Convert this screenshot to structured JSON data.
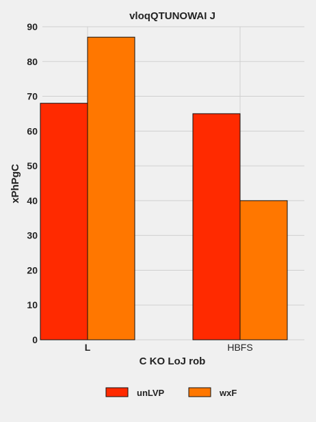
{
  "chart_data": {
    "type": "bar",
    "title": "vloqQTUNOWAI J",
    "xlabel": "C KO LoJ rob",
    "ylabel": "xPhPgC",
    "categories": [
      "L",
      "HBFS"
    ],
    "series": [
      {
        "name": "unLVP",
        "values": [
          68,
          65
        ],
        "color": "#ff2a00"
      },
      {
        "name": "wxF",
        "values": [
          87,
          40
        ],
        "color": "#ff7700"
      }
    ],
    "ylim": [
      0,
      90
    ],
    "yticks": [
      0,
      10,
      20,
      30,
      40,
      50,
      60,
      70,
      80,
      90
    ],
    "grid": true,
    "legend_position": "bottom"
  }
}
